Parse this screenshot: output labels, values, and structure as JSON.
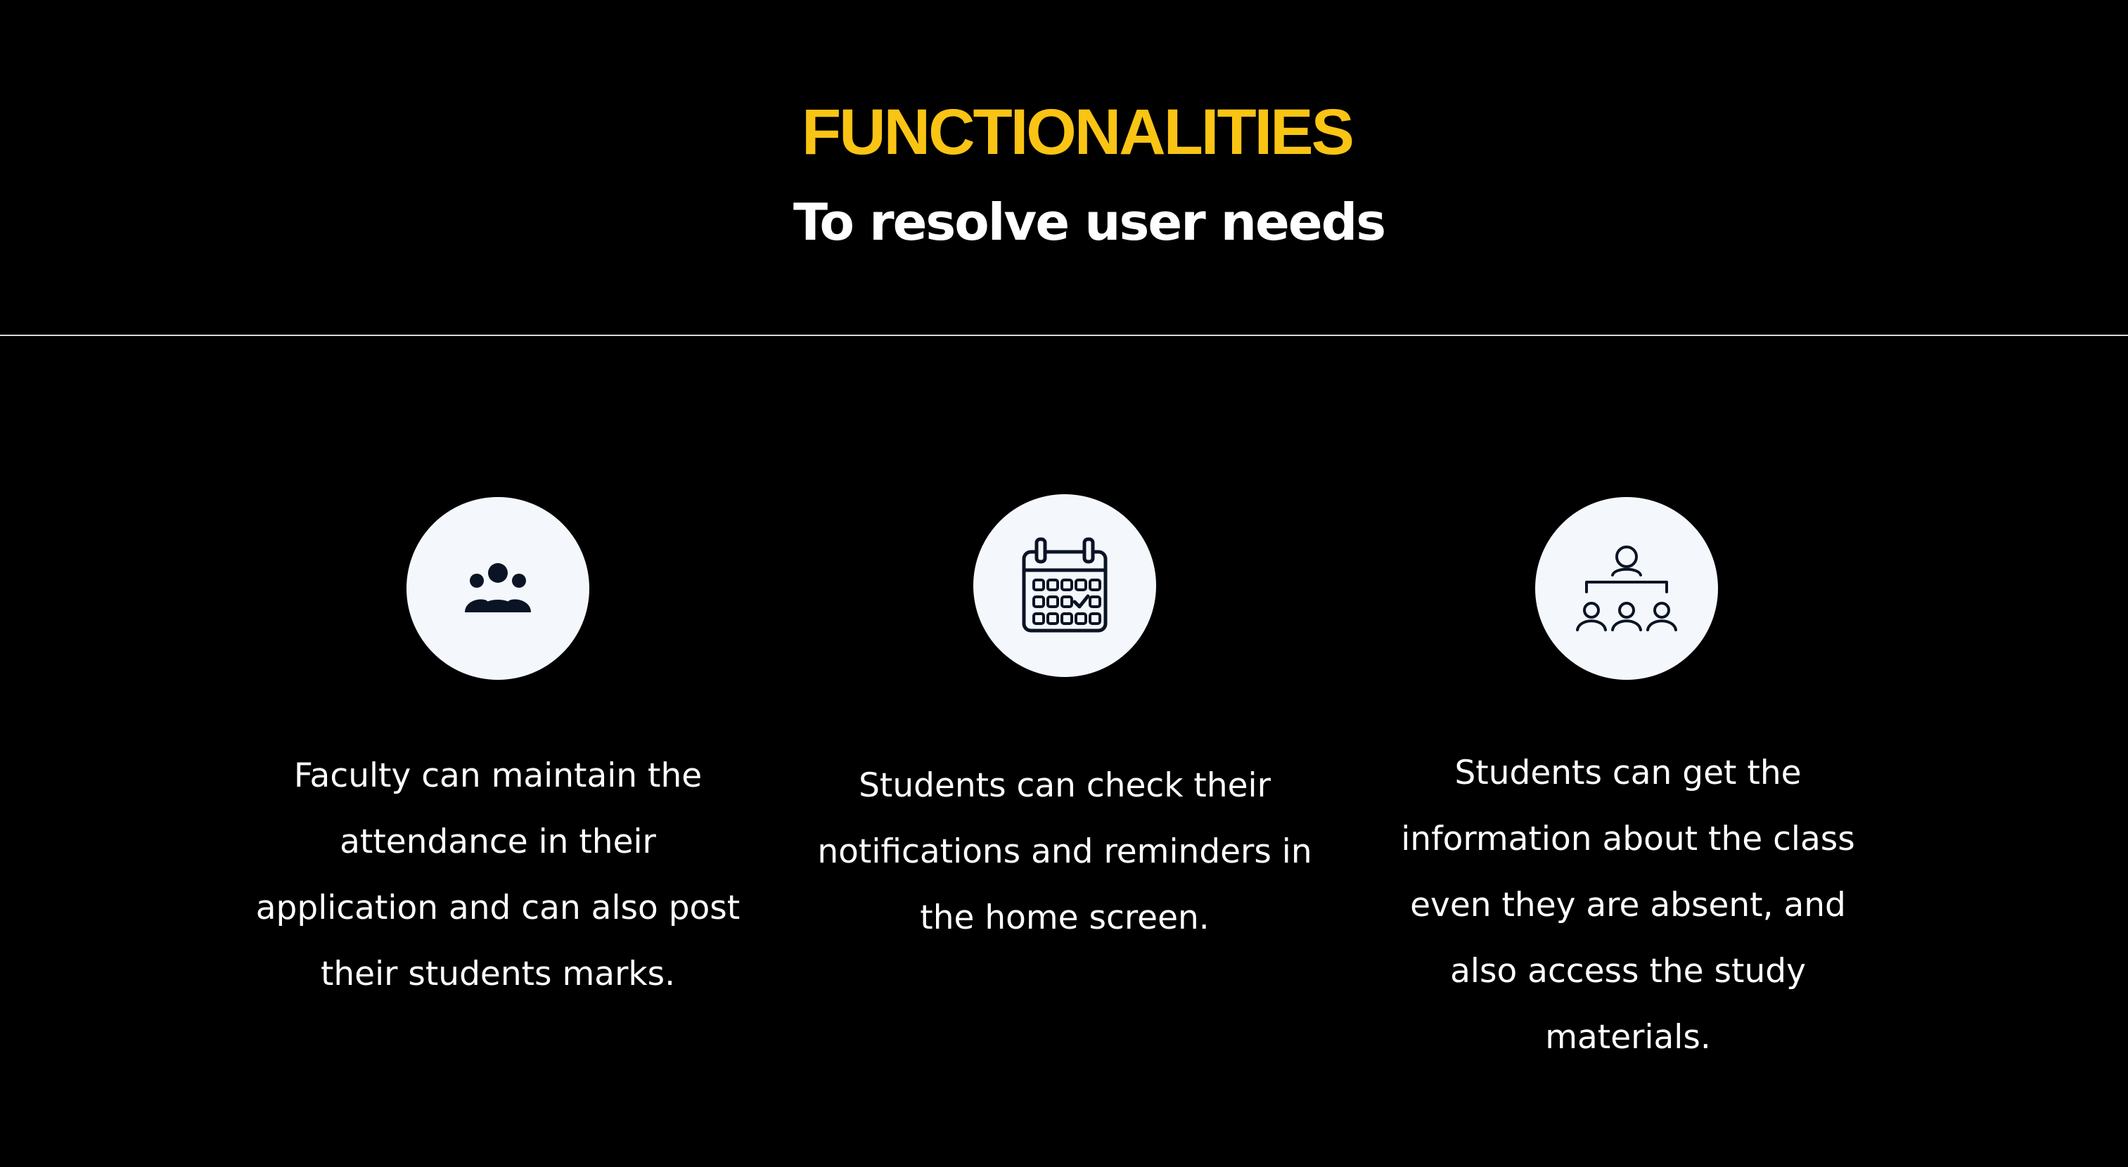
{
  "header": {
    "title": "FUNCTIONALITIES",
    "subtitle": "To resolve user needs"
  },
  "features": [
    {
      "icon": "group-icon",
      "text": "Faculty can maintain the\nattendance in their\napplication and can also post\ntheir students marks."
    },
    {
      "icon": "calendar-icon",
      "text": "Students can check their\nnotifications and reminders in\nthe home screen."
    },
    {
      "icon": "classroom-icon",
      "text": "Students can get the\ninformation about the class\neven they are absent, and\nalso access the study\nmaterials."
    }
  ],
  "colors": {
    "background": "#000000",
    "title": "#f9c414",
    "text": "#ffffff",
    "icon_circle": "#f4f7fc",
    "icon": "#0b1424"
  }
}
